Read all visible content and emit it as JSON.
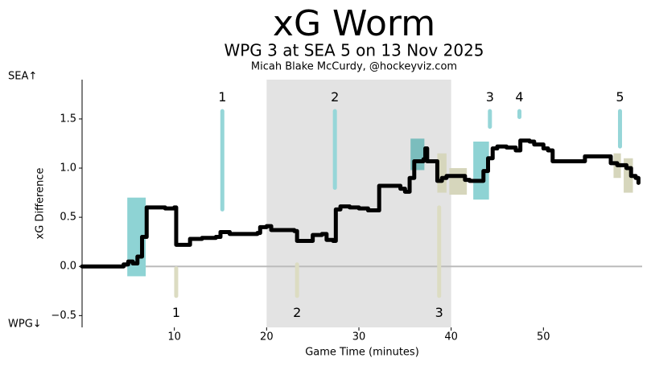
{
  "chart_data": {
    "type": "line",
    "title": "xG Worm",
    "subtitle": "WPG 3 at SEA 5 on 13 Nov 2025",
    "byline": "Micah Blake McCurdy, @hockeyviz.com",
    "xlabel": "Game Time (minutes)",
    "ylabel": "xG Difference",
    "top_team": "SEA↑",
    "bottom_team": "WPG↓",
    "xlim": [
      0,
      60.7
    ],
    "ylim": [
      -0.62,
      1.9
    ],
    "xticks": [
      10,
      20,
      30,
      40,
      50
    ],
    "yticks": [
      {
        "value": -0.5,
        "label": "−0.5"
      },
      {
        "value": 0,
        "label": "0.0"
      },
      {
        "value": 0.5,
        "label": "0.5"
      },
      {
        "value": 1,
        "label": "1.0"
      },
      {
        "value": 1.5,
        "label": "1.5"
      }
    ],
    "shaded_period": [
      20,
      40
    ],
    "series": [
      {
        "name": "xG Difference",
        "color": "#000000",
        "x": [
          0,
          4,
          4.5,
          5,
          5.5,
          6,
          6.5,
          7,
          9,
          10,
          10.2,
          11.5,
          11.7,
          13,
          14.5,
          15,
          16,
          19,
          19.3,
          20,
          20.5,
          23,
          23.3,
          24.5,
          25,
          26,
          26.5,
          27.2,
          27.5,
          28,
          29,
          30,
          31,
          32,
          32.2,
          34,
          34.5,
          35,
          35.5,
          36,
          37,
          37.2,
          37.4,
          38,
          38.5,
          39,
          39.5,
          41,
          41.5,
          42,
          43,
          43.5,
          44,
          44.5,
          45,
          46,
          47,
          47.5,
          48.5,
          49,
          50,
          50.5,
          51,
          54,
          54.5,
          57,
          57.3,
          58,
          59,
          59.5,
          60,
          60.3
        ],
        "values": [
          0,
          0,
          0.02,
          0.05,
          0.03,
          0.1,
          0.3,
          0.6,
          0.59,
          0.6,
          0.22,
          0.22,
          0.28,
          0.29,
          0.3,
          0.35,
          0.33,
          0.34,
          0.4,
          0.41,
          0.37,
          0.36,
          0.26,
          0.26,
          0.32,
          0.33,
          0.27,
          0.26,
          0.58,
          0.61,
          0.6,
          0.59,
          0.57,
          0.57,
          0.82,
          0.82,
          0.79,
          0.76,
          0.9,
          1.07,
          1.09,
          1.2,
          1.07,
          1.07,
          0.87,
          0.9,
          0.92,
          0.92,
          0.88,
          0.87,
          0.87,
          0.97,
          1.1,
          1.2,
          1.22,
          1.21,
          1.18,
          1.28,
          1.27,
          1.24,
          1.2,
          1.18,
          1.07,
          1.07,
          1.12,
          1.12,
          1.05,
          1.03,
          1,
          0.92,
          0.9,
          0.85
        ]
      }
    ],
    "power_plays": [
      {
        "x": [
          4.9,
          6.9
        ],
        "y": [
          -0.1,
          0.7
        ],
        "color": "#8ed3d4"
      },
      {
        "x": [
          35.6,
          37.1
        ],
        "y": [
          0.98,
          1.3
        ],
        "color": "#7bbdbd"
      },
      {
        "x": [
          42.4,
          44.1
        ],
        "y": [
          0.68,
          1.27
        ],
        "color": "#8ed3d4"
      },
      {
        "x": [
          38.5,
          39.5
        ],
        "y": [
          0.75,
          1.15
        ],
        "color": "#d6d6bc"
      },
      {
        "x": [
          39.8,
          41.7
        ],
        "y": [
          0.73,
          1.0
        ],
        "color": "#d6d6bc"
      },
      {
        "x": [
          57.6,
          58.4
        ],
        "y": [
          0.9,
          1.15
        ],
        "color": "#d6d6bc"
      },
      {
        "x": [
          58.7,
          59.7
        ],
        "y": [
          0.75,
          1.1
        ],
        "color": "#d6d6bc"
      }
    ],
    "goals": [
      {
        "label": "1",
        "x": 15.2,
        "y": [
          0.58,
          1.58
        ],
        "color": "#96d6d8",
        "side": "top"
      },
      {
        "label": "2",
        "x": 27.4,
        "y": [
          0.8,
          1.58
        ],
        "color": "#96d6d8",
        "side": "top"
      },
      {
        "label": "3",
        "x": 44.2,
        "y": [
          1.42,
          1.58
        ],
        "color": "#96d6d8",
        "side": "top"
      },
      {
        "label": "4",
        "x": 47.4,
        "y": [
          1.52,
          1.58
        ],
        "color": "#96d6d8",
        "side": "top"
      },
      {
        "label": "5",
        "x": 58.3,
        "y": [
          1.22,
          1.58
        ],
        "color": "#96d6d8",
        "side": "top"
      },
      {
        "label": "1",
        "x": 10.2,
        "y": [
          -0.3,
          -0.02
        ],
        "color": "#dcdcc2",
        "side": "bottom"
      },
      {
        "label": "2",
        "x": 23.3,
        "y": [
          -0.3,
          0.02
        ],
        "color": "#dcdcc2",
        "side": "bottom"
      },
      {
        "label": "3",
        "x": 38.7,
        "y": [
          -0.3,
          0.6
        ],
        "color": "#dcdcc2",
        "side": "bottom"
      }
    ]
  }
}
